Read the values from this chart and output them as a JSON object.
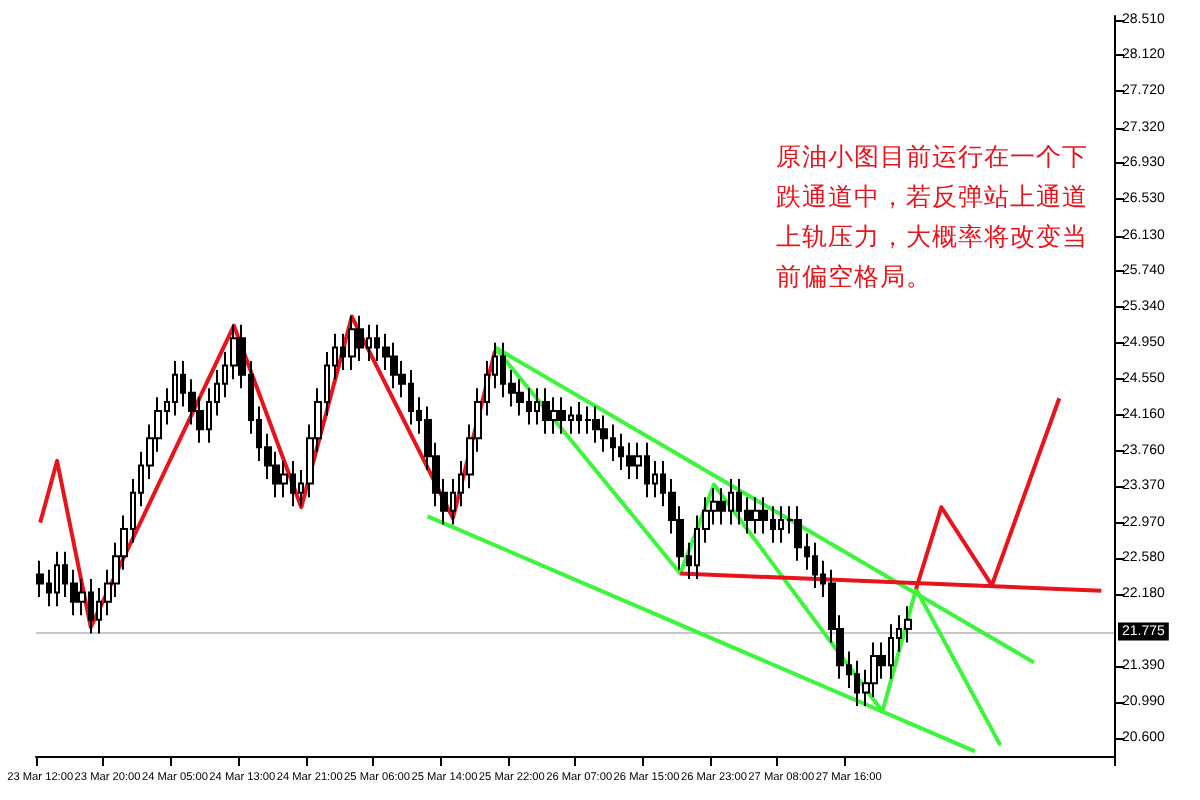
{
  "chart_data": {
    "type": "candlestick",
    "categories": [
      "23 Mar 12:00",
      null,
      null,
      null,
      null,
      null,
      null,
      null,
      "23 Mar 20:00",
      null,
      null,
      null,
      null,
      null,
      null,
      null,
      "24 Mar 05:00",
      null,
      null,
      null,
      null,
      null,
      null,
      null,
      "24 Mar 13:00",
      null,
      null,
      null,
      null,
      null,
      null,
      null,
      "24 Mar 21:00",
      null,
      null,
      null,
      null,
      null,
      null,
      null,
      "25 Mar 06:00",
      null,
      null,
      null,
      null,
      null,
      null,
      null,
      "25 Mar 14:00",
      null,
      null,
      null,
      null,
      null,
      null,
      null,
      "25 Mar 22:00",
      null,
      null,
      null,
      null,
      null,
      null,
      null,
      "26 Mar 07:00",
      null,
      null,
      null,
      null,
      null,
      null,
      null,
      "26 Mar 15:00",
      null,
      null,
      null,
      null,
      null,
      null,
      null,
      "26 Mar 23:00",
      null,
      null,
      null,
      null,
      null,
      null,
      null,
      "27 Mar 08:00",
      null,
      null,
      null,
      null,
      null,
      null,
      null,
      "27 Mar 16:00",
      null,
      null,
      null,
      null,
      null,
      null,
      null,
      null,
      null,
      null,
      null,
      null,
      null,
      null,
      null,
      null,
      null,
      null,
      null,
      null,
      null,
      null,
      null,
      null,
      null,
      null,
      null,
      null,
      null,
      null,
      null
    ],
    "ohlc": [
      [
        22.4,
        22.55,
        22.15,
        22.3
      ],
      [
        22.3,
        22.45,
        22.05,
        22.2
      ],
      [
        22.2,
        22.65,
        22.05,
        22.5
      ],
      [
        22.5,
        22.65,
        22.15,
        22.3
      ],
      [
        22.3,
        22.45,
        21.95,
        22.1
      ],
      [
        22.1,
        22.35,
        21.95,
        22.2
      ],
      [
        22.2,
        22.35,
        21.75,
        21.9
      ],
      [
        21.9,
        22.25,
        21.75,
        22.1
      ],
      [
        22.1,
        22.45,
        21.95,
        22.3
      ],
      [
        22.3,
        22.75,
        22.15,
        22.6
      ],
      [
        22.6,
        23.05,
        22.45,
        22.9
      ],
      [
        22.9,
        23.45,
        22.75,
        23.3
      ],
      [
        23.3,
        23.75,
        23.15,
        23.6
      ],
      [
        23.6,
        24.05,
        23.45,
        23.9
      ],
      [
        23.9,
        24.35,
        23.75,
        24.2
      ],
      [
        24.2,
        24.45,
        24.05,
        24.3
      ],
      [
        24.3,
        24.75,
        24.15,
        24.6
      ],
      [
        24.6,
        24.75,
        24.25,
        24.4
      ],
      [
        24.4,
        24.55,
        24.05,
        24.2
      ],
      [
        24.2,
        24.35,
        23.85,
        24.0
      ],
      [
        24.0,
        24.45,
        23.85,
        24.3
      ],
      [
        24.3,
        24.65,
        24.15,
        24.5
      ],
      [
        24.5,
        24.85,
        24.35,
        24.7
      ],
      [
        24.7,
        25.15,
        24.55,
        25.0
      ],
      [
        25.0,
        25.15,
        24.45,
        24.6
      ],
      [
        24.6,
        24.75,
        23.95,
        24.1
      ],
      [
        24.1,
        24.25,
        23.65,
        23.8
      ],
      [
        23.8,
        23.95,
        23.45,
        23.6
      ],
      [
        23.6,
        23.75,
        23.25,
        23.4
      ],
      [
        23.4,
        23.65,
        23.25,
        23.5
      ],
      [
        23.5,
        23.65,
        23.15,
        23.3
      ],
      [
        23.3,
        23.55,
        23.15,
        23.4
      ],
      [
        23.4,
        24.05,
        23.25,
        23.9
      ],
      [
        23.9,
        24.45,
        23.75,
        24.3
      ],
      [
        24.3,
        24.85,
        24.15,
        24.7
      ],
      [
        24.7,
        25.05,
        24.55,
        24.9
      ],
      [
        24.9,
        25.05,
        24.65,
        24.8
      ],
      [
        24.8,
        25.25,
        24.65,
        25.1
      ],
      [
        25.1,
        25.25,
        24.75,
        24.9
      ],
      [
        24.9,
        25.15,
        24.75,
        25.0
      ],
      [
        25.0,
        25.15,
        24.75,
        24.9
      ],
      [
        24.9,
        25.05,
        24.65,
        24.8
      ],
      [
        24.8,
        24.95,
        24.45,
        24.6
      ],
      [
        24.6,
        24.75,
        24.35,
        24.5
      ],
      [
        24.5,
        24.65,
        24.05,
        24.2
      ],
      [
        24.2,
        24.35,
        23.95,
        24.1
      ],
      [
        24.1,
        24.25,
        23.55,
        23.7
      ],
      [
        23.7,
        23.85,
        23.15,
        23.3
      ],
      [
        23.3,
        23.45,
        22.95,
        23.1
      ],
      [
        23.1,
        23.45,
        22.95,
        23.3
      ],
      [
        23.3,
        23.65,
        23.15,
        23.5
      ],
      [
        23.5,
        24.05,
        23.35,
        23.9
      ],
      [
        23.9,
        24.45,
        23.75,
        24.3
      ],
      [
        24.3,
        24.75,
        24.15,
        24.6
      ],
      [
        24.6,
        24.95,
        24.45,
        24.8
      ],
      [
        24.8,
        24.95,
        24.35,
        24.5
      ],
      [
        24.5,
        24.65,
        24.25,
        24.4
      ],
      [
        24.4,
        24.55,
        24.15,
        24.3
      ],
      [
        24.3,
        24.45,
        24.05,
        24.2
      ],
      [
        24.2,
        24.45,
        24.05,
        24.3
      ],
      [
        24.3,
        24.45,
        23.95,
        24.1
      ],
      [
        24.1,
        24.35,
        23.95,
        24.2
      ],
      [
        24.2,
        24.35,
        23.95,
        24.1
      ],
      [
        24.1,
        24.25,
        23.95,
        24.15
      ],
      [
        24.15,
        24.3,
        23.95,
        24.1
      ],
      [
        24.1,
        24.25,
        23.95,
        24.1
      ],
      [
        24.1,
        24.25,
        23.85,
        24.0
      ],
      [
        24.0,
        24.15,
        23.75,
        23.9
      ],
      [
        23.9,
        24.05,
        23.65,
        23.8
      ],
      [
        23.8,
        23.95,
        23.55,
        23.7
      ],
      [
        23.7,
        23.85,
        23.45,
        23.6
      ],
      [
        23.6,
        23.85,
        23.45,
        23.7
      ],
      [
        23.7,
        23.85,
        23.25,
        23.4
      ],
      [
        23.4,
        23.65,
        23.25,
        23.5
      ],
      [
        23.5,
        23.65,
        23.15,
        23.3
      ],
      [
        23.3,
        23.45,
        22.85,
        23.0
      ],
      [
        23.0,
        23.15,
        22.45,
        22.6
      ],
      [
        22.6,
        22.75,
        22.35,
        22.5
      ],
      [
        22.5,
        23.05,
        22.35,
        22.9
      ],
      [
        22.9,
        23.25,
        22.75,
        23.1
      ],
      [
        23.1,
        23.35,
        22.95,
        23.2
      ],
      [
        23.2,
        23.35,
        22.95,
        23.1
      ],
      [
        23.1,
        23.45,
        22.95,
        23.3
      ],
      [
        23.3,
        23.45,
        22.95,
        23.1
      ],
      [
        23.1,
        23.25,
        22.85,
        23.0
      ],
      [
        23.0,
        23.25,
        22.85,
        23.1
      ],
      [
        23.1,
        23.25,
        22.85,
        23.0
      ],
      [
        23.0,
        23.15,
        22.75,
        22.9
      ],
      [
        22.9,
        23.15,
        22.75,
        23.0
      ],
      [
        23.0,
        23.15,
        22.85,
        23.0
      ],
      [
        23.0,
        23.15,
        22.55,
        22.7
      ],
      [
        22.7,
        22.85,
        22.45,
        22.6
      ],
      [
        22.6,
        22.75,
        22.25,
        22.4
      ],
      [
        22.4,
        22.55,
        22.15,
        22.3
      ],
      [
        22.3,
        22.45,
        21.65,
        21.8
      ],
      [
        21.8,
        21.95,
        21.25,
        21.4
      ],
      [
        21.4,
        21.55,
        21.15,
        21.3
      ],
      [
        21.3,
        21.45,
        20.95,
        21.1
      ],
      [
        21.1,
        21.35,
        20.95,
        21.2
      ],
      [
        21.2,
        21.65,
        21.05,
        21.5
      ],
      [
        21.5,
        21.65,
        21.25,
        21.4
      ],
      [
        21.4,
        21.85,
        21.25,
        21.7
      ],
      [
        21.7,
        21.95,
        21.55,
        21.8
      ],
      [
        21.8,
        22.05,
        21.65,
        21.9
      ],
      null,
      null,
      null,
      null,
      null,
      null,
      null,
      null,
      null,
      null,
      null,
      null,
      null,
      null,
      null,
      null,
      null,
      null,
      null,
      null,
      null,
      null,
      null,
      null
    ],
    "series": [
      {
        "type": "line",
        "color": "#e8141c",
        "values": [
          22.97,
          null,
          23.65,
          null,
          null,
          null,
          21.82,
          null,
          null,
          null,
          null,
          null,
          null,
          null,
          null,
          null,
          null,
          null,
          null,
          null,
          null,
          null,
          null,
          25.14,
          null,
          null,
          null,
          null,
          null,
          null,
          null,
          23.14,
          null,
          null,
          null,
          null,
          null,
          25.24,
          null,
          null,
          null,
          null,
          null,
          null,
          null,
          null,
          null,
          null,
          null,
          23.02,
          null,
          null,
          null,
          null,
          24.86,
          null,
          null,
          null,
          null,
          null,
          null,
          null,
          null,
          null,
          null,
          null,
          null,
          null,
          null,
          null,
          null,
          null,
          null,
          null,
          null,
          null,
          null,
          null,
          null,
          null,
          null,
          null,
          null,
          null,
          null,
          null,
          null,
          null,
          null,
          null,
          null,
          null,
          null,
          null,
          null,
          null,
          null,
          null,
          null,
          null,
          null,
          null,
          null,
          null,
          null,
          null,
          null,
          null,
          null,
          null,
          null,
          null,
          null,
          null,
          null,
          null,
          null,
          null,
          null,
          null,
          null,
          null,
          null,
          null,
          null,
          null,
          null,
          null
        ]
      },
      {
        "type": "line",
        "color": "#3df53d",
        "values": [
          null,
          null,
          null,
          null,
          null,
          null,
          null,
          null,
          null,
          null,
          null,
          null,
          null,
          null,
          null,
          null,
          null,
          null,
          null,
          null,
          null,
          null,
          null,
          null,
          null,
          null,
          null,
          null,
          null,
          null,
          null,
          null,
          null,
          null,
          null,
          null,
          null,
          null,
          null,
          null,
          null,
          null,
          null,
          null,
          null,
          null,
          null,
          null,
          null,
          null,
          null,
          null,
          null,
          null,
          24.9,
          null,
          null,
          null,
          null,
          null,
          null,
          null,
          null,
          null,
          null,
          null,
          null,
          null,
          null,
          null,
          null,
          null,
          null,
          null,
          null,
          null,
          null,
          null,
          null,
          null,
          null,
          null,
          null,
          null,
          null,
          null,
          null,
          null,
          null,
          null,
          null,
          null,
          null,
          null,
          null,
          null,
          null,
          null,
          null,
          null,
          null,
          null,
          null,
          null,
          null,
          null,
          null,
          null,
          null,
          null,
          null,
          null,
          null,
          null,
          null,
          null,
          null,
          null,
          21.43,
          null,
          null,
          null,
          null,
          null,
          null,
          null,
          null,
          null
        ]
      },
      {
        "type": "line",
        "color": "#3df53d",
        "values": [
          null,
          null,
          null,
          null,
          null,
          null,
          null,
          null,
          null,
          null,
          null,
          null,
          null,
          null,
          null,
          null,
          null,
          null,
          null,
          null,
          null,
          null,
          null,
          null,
          null,
          null,
          null,
          null,
          null,
          null,
          null,
          null,
          null,
          null,
          null,
          null,
          null,
          null,
          null,
          null,
          null,
          null,
          null,
          null,
          null,
          null,
          23.04,
          null,
          null,
          null,
          null,
          null,
          null,
          null,
          null,
          null,
          null,
          null,
          null,
          null,
          null,
          null,
          null,
          null,
          null,
          null,
          null,
          null,
          null,
          null,
          null,
          null,
          null,
          null,
          null,
          null,
          null,
          null,
          null,
          null,
          null,
          null,
          null,
          null,
          null,
          null,
          null,
          null,
          null,
          null,
          null,
          null,
          null,
          null,
          null,
          null,
          null,
          null,
          null,
          null,
          null,
          null,
          null,
          null,
          null,
          null,
          null,
          null,
          null,
          null,
          null,
          20.45,
          null,
          null,
          null,
          null,
          null,
          null,
          null,
          null,
          null,
          null,
          null,
          null,
          null,
          null,
          null,
          null
        ]
      },
      {
        "type": "line",
        "color": "#3df53d",
        "values": [
          null,
          null,
          null,
          null,
          null,
          null,
          null,
          null,
          null,
          null,
          null,
          null,
          null,
          null,
          null,
          null,
          null,
          null,
          null,
          null,
          null,
          null,
          null,
          null,
          null,
          null,
          null,
          null,
          null,
          null,
          null,
          null,
          null,
          null,
          null,
          null,
          null,
          null,
          null,
          null,
          null,
          null,
          null,
          null,
          null,
          null,
          null,
          null,
          null,
          null,
          null,
          null,
          null,
          null,
          24.9,
          null,
          null,
          null,
          null,
          null,
          null,
          null,
          null,
          null,
          null,
          null,
          null,
          null,
          null,
          null,
          null,
          null,
          null,
          null,
          null,
          null,
          22.41,
          null,
          null,
          null,
          23.39,
          null,
          null,
          null,
          null,
          null,
          null,
          null,
          null,
          null,
          null,
          null,
          null,
          null,
          null,
          null,
          null,
          null,
          null,
          null,
          20.89,
          null,
          null,
          null,
          22.24,
          null,
          null,
          null,
          null,
          null,
          null,
          null,
          null,
          null,
          20.52,
          null,
          null,
          null,
          null,
          null,
          null,
          null,
          null,
          null,
          null,
          null,
          null,
          null
        ]
      },
      {
        "type": "line",
        "color": "#e8141c",
        "values": [
          null,
          null,
          null,
          null,
          null,
          null,
          null,
          null,
          null,
          null,
          null,
          null,
          null,
          null,
          null,
          null,
          null,
          null,
          null,
          null,
          null,
          null,
          null,
          null,
          null,
          null,
          null,
          null,
          null,
          null,
          null,
          null,
          null,
          null,
          null,
          null,
          null,
          null,
          null,
          null,
          null,
          null,
          null,
          null,
          null,
          null,
          null,
          null,
          null,
          null,
          null,
          null,
          null,
          null,
          null,
          null,
          null,
          null,
          null,
          null,
          null,
          null,
          null,
          null,
          null,
          null,
          null,
          null,
          null,
          null,
          null,
          null,
          null,
          null,
          null,
          null,
          22.41,
          null,
          null,
          null,
          null,
          null,
          null,
          null,
          null,
          null,
          null,
          null,
          null,
          null,
          null,
          null,
          null,
          null,
          null,
          null,
          null,
          null,
          null,
          null,
          null,
          null,
          null,
          null,
          null,
          null,
          null,
          null,
          null,
          null,
          null,
          null,
          null,
          null,
          null,
          null,
          null,
          null,
          null,
          null,
          null,
          null,
          null,
          null,
          null,
          null,
          22.22,
          null
        ]
      },
      {
        "type": "line",
        "color": "#e8141c",
        "values": [
          null,
          null,
          null,
          null,
          null,
          null,
          null,
          null,
          null,
          null,
          null,
          null,
          null,
          null,
          null,
          null,
          null,
          null,
          null,
          null,
          null,
          null,
          null,
          null,
          null,
          null,
          null,
          null,
          null,
          null,
          null,
          null,
          null,
          null,
          null,
          null,
          null,
          null,
          null,
          null,
          null,
          null,
          null,
          null,
          null,
          null,
          null,
          null,
          null,
          null,
          null,
          null,
          null,
          null,
          null,
          null,
          null,
          null,
          null,
          null,
          null,
          null,
          null,
          null,
          null,
          null,
          null,
          null,
          null,
          null,
          null,
          null,
          null,
          null,
          null,
          null,
          null,
          null,
          null,
          null,
          null,
          null,
          null,
          null,
          null,
          null,
          null,
          null,
          null,
          null,
          null,
          null,
          null,
          null,
          null,
          null,
          null,
          null,
          null,
          null,
          null,
          null,
          null,
          null,
          22.24,
          null,
          null,
          23.14,
          null,
          null,
          null,
          null,
          null,
          22.28,
          null,
          null,
          null,
          null,
          null,
          null,
          null,
          24.34,
          null,
          null,
          null,
          null,
          null,
          null
        ]
      }
    ],
    "ylim": [
      20.4,
      28.55
    ],
    "yticks": [
      {
        "value": 20.6,
        "label": "20.600"
      },
      {
        "value": 20.99,
        "label": "20.990"
      },
      {
        "value": 21.39,
        "label": "21.390"
      },
      {
        "value": 22.18,
        "label": "22.180"
      },
      {
        "value": 22.58,
        "label": "22.580"
      },
      {
        "value": 22.97,
        "label": "22.970"
      },
      {
        "value": 23.37,
        "label": "23.370"
      },
      {
        "value": 23.76,
        "label": "23.760"
      },
      {
        "value": 24.16,
        "label": "24.160"
      },
      {
        "value": 24.55,
        "label": "24.550"
      },
      {
        "value": 24.95,
        "label": "24.950"
      },
      {
        "value": 25.34,
        "label": "25.340"
      },
      {
        "value": 25.74,
        "label": "25.740"
      },
      {
        "value": 26.13,
        "label": "26.130"
      },
      {
        "value": 26.53,
        "label": "26.530"
      },
      {
        "value": 26.93,
        "label": "26.930"
      },
      {
        "value": 27.32,
        "label": "27.320"
      },
      {
        "value": 27.72,
        "label": "27.720"
      },
      {
        "value": 28.12,
        "label": "28.120"
      },
      {
        "value": 28.51,
        "label": "28.510"
      }
    ],
    "ref_lines": [
      {
        "axis": "y",
        "value": 21.775,
        "label": "21.775",
        "color": "#c8c8c8"
      }
    ],
    "annotations": [
      "原油小图目前运行在一个下跌通道中，若反弹站上通道上轨压力，大概率将改变当前偏空格局。"
    ],
    "grid": false
  }
}
